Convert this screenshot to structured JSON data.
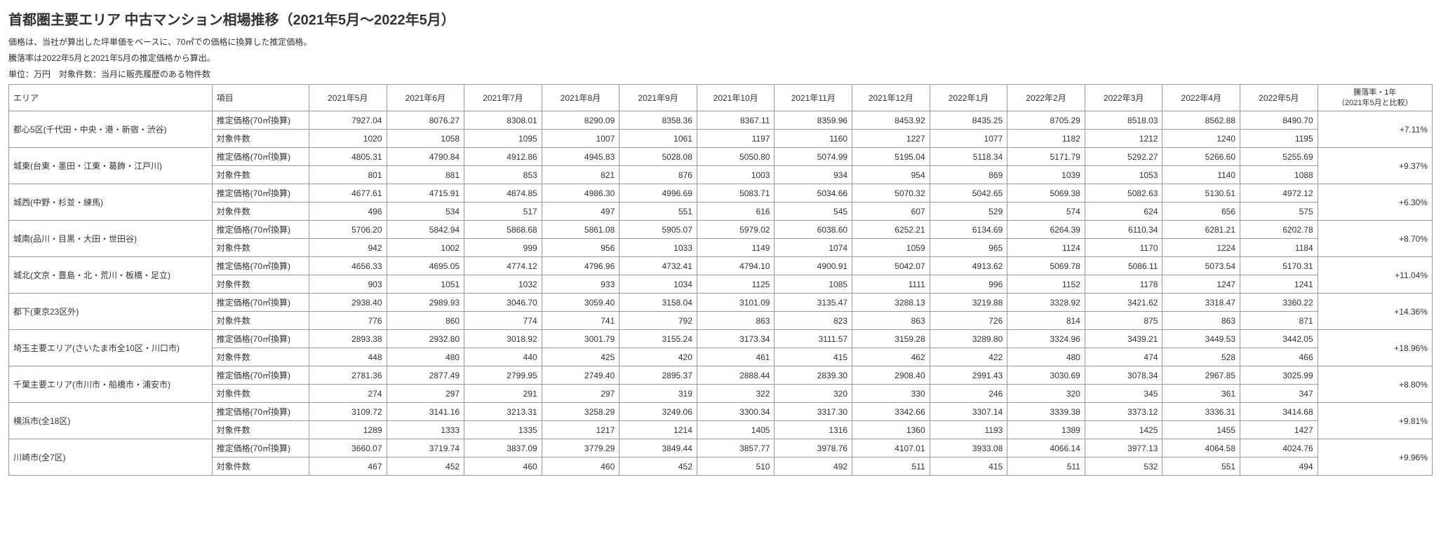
{
  "title": "首都圏主要エリア 中古マンション相場推移（2021年5月〜2022年5月）",
  "notes": [
    "価格は、当社が算出した坪単価をベースに、70㎡での価格に換算した推定価格。",
    "騰落率は2022年5月と2021年5月の推定価格から算出。",
    "単位：万円　対象件数：当月に販売履歴のある物件数"
  ],
  "headers": {
    "area": "エリア",
    "item": "項目",
    "months": [
      "2021年5月",
      "2021年6月",
      "2021年7月",
      "2021年8月",
      "2021年9月",
      "2021年10月",
      "2021年11月",
      "2021年12月",
      "2022年1月",
      "2022年2月",
      "2022年3月",
      "2022年4月",
      "2022年5月"
    ],
    "change_line1": "騰落率・1年",
    "change_line2": "（2021年5月と比較）"
  },
  "item_labels": {
    "price": "推定価格(70㎡換算)",
    "count": "対象件数"
  },
  "rows": [
    {
      "area": "都心5区(千代田・中央・港・新宿・渋谷)",
      "price": [
        "7927.04",
        "8076.27",
        "8308.01",
        "8290.09",
        "8358.36",
        "8367.11",
        "8359.96",
        "8453.92",
        "8435.25",
        "8705.29",
        "8518.03",
        "8562.88",
        "8490.70"
      ],
      "count": [
        "1020",
        "1058",
        "1095",
        "1007",
        "1061",
        "1197",
        "1160",
        "1227",
        "1077",
        "1182",
        "1212",
        "1240",
        "1195"
      ],
      "change": "+7.11%"
    },
    {
      "area": "城東(台東・墨田・江東・葛飾・江戸川)",
      "price": [
        "4805.31",
        "4790.84",
        "4912.86",
        "4945.83",
        "5028.08",
        "5050.80",
        "5074.99",
        "5195.04",
        "5118.34",
        "5171.79",
        "5292.27",
        "5266.60",
        "5255.69"
      ],
      "count": [
        "801",
        "881",
        "853",
        "821",
        "876",
        "1003",
        "934",
        "954",
        "869",
        "1039",
        "1053",
        "1140",
        "1088"
      ],
      "change": "+9.37%"
    },
    {
      "area": "城西(中野・杉並・練馬)",
      "price": [
        "4677.61",
        "4715.91",
        "4874.85",
        "4986.30",
        "4996.69",
        "5083.71",
        "5034.66",
        "5070.32",
        "5042.65",
        "5069.38",
        "5082.63",
        "5130.51",
        "4972.12"
      ],
      "count": [
        "496",
        "534",
        "517",
        "497",
        "551",
        "616",
        "545",
        "607",
        "529",
        "574",
        "624",
        "656",
        "575"
      ],
      "change": "+6.30%"
    },
    {
      "area": "城南(品川・目黒・大田・世田谷)",
      "price": [
        "5706.20",
        "5842.94",
        "5868.68",
        "5861.08",
        "5905.07",
        "5979.02",
        "6038.60",
        "6252.21",
        "6134.69",
        "6264.39",
        "6110.34",
        "6281.21",
        "6202.78"
      ],
      "count": [
        "942",
        "1002",
        "999",
        "956",
        "1033",
        "1149",
        "1074",
        "1059",
        "965",
        "1124",
        "1170",
        "1224",
        "1184"
      ],
      "change": "+8.70%"
    },
    {
      "area": "城北(文京・豊島・北・荒川・板橋・足立)",
      "price": [
        "4656.33",
        "4695.05",
        "4774.12",
        "4796.96",
        "4732.41",
        "4794.10",
        "4900.91",
        "5042.07",
        "4913.62",
        "5069.78",
        "5086.11",
        "5073.54",
        "5170.31"
      ],
      "count": [
        "903",
        "1051",
        "1032",
        "933",
        "1034",
        "1125",
        "1085",
        "1111",
        "996",
        "1152",
        "1178",
        "1247",
        "1241"
      ],
      "change": "+11.04%"
    },
    {
      "area": "都下(東京23区外)",
      "price": [
        "2938.40",
        "2989.93",
        "3046.70",
        "3059.40",
        "3158.04",
        "3101.09",
        "3135.47",
        "3288.13",
        "3219.88",
        "3328.92",
        "3421.62",
        "3318.47",
        "3360.22"
      ],
      "count": [
        "776",
        "860",
        "774",
        "741",
        "792",
        "863",
        "823",
        "863",
        "726",
        "814",
        "875",
        "863",
        "871"
      ],
      "change": "+14.36%"
    },
    {
      "area": "埼玉主要エリア(さいたま市全10区・川口市)",
      "price": [
        "2893.38",
        "2932.80",
        "3018.92",
        "3001.79",
        "3155.24",
        "3173.34",
        "3111.57",
        "3159.28",
        "3289.80",
        "3324.96",
        "3439.21",
        "3449.53",
        "3442.05"
      ],
      "count": [
        "448",
        "480",
        "440",
        "425",
        "420",
        "461",
        "415",
        "462",
        "422",
        "480",
        "474",
        "528",
        "466"
      ],
      "change": "+18.96%"
    },
    {
      "area": "千葉主要エリア(市川市・船橋市・浦安市)",
      "price": [
        "2781.36",
        "2877.49",
        "2799.95",
        "2749.40",
        "2895.37",
        "2888.44",
        "2839.30",
        "2908.40",
        "2991.43",
        "3030.69",
        "3078.34",
        "2967.85",
        "3025.99"
      ],
      "count": [
        "274",
        "297",
        "291",
        "297",
        "319",
        "322",
        "320",
        "330",
        "246",
        "320",
        "345",
        "361",
        "347"
      ],
      "change": "+8.80%"
    },
    {
      "area": "横浜市(全18区)",
      "price": [
        "3109.72",
        "3141.16",
        "3213.31",
        "3258.29",
        "3249.06",
        "3300.34",
        "3317.30",
        "3342.66",
        "3307.14",
        "3339.38",
        "3373.12",
        "3336.31",
        "3414.68"
      ],
      "count": [
        "1289",
        "1333",
        "1335",
        "1217",
        "1214",
        "1405",
        "1316",
        "1360",
        "1193",
        "1389",
        "1425",
        "1455",
        "1427"
      ],
      "change": "+9.81%"
    },
    {
      "area": "川崎市(全7区)",
      "price": [
        "3660.07",
        "3719.74",
        "3837.09",
        "3779.29",
        "3849.44",
        "3857.77",
        "3978.76",
        "4107.01",
        "3933.08",
        "4066.14",
        "3977.13",
        "4064.58",
        "4024.76"
      ],
      "count": [
        "467",
        "452",
        "460",
        "460",
        "452",
        "510",
        "492",
        "511",
        "415",
        "511",
        "532",
        "551",
        "494"
      ],
      "change": "+9.96%"
    }
  ]
}
